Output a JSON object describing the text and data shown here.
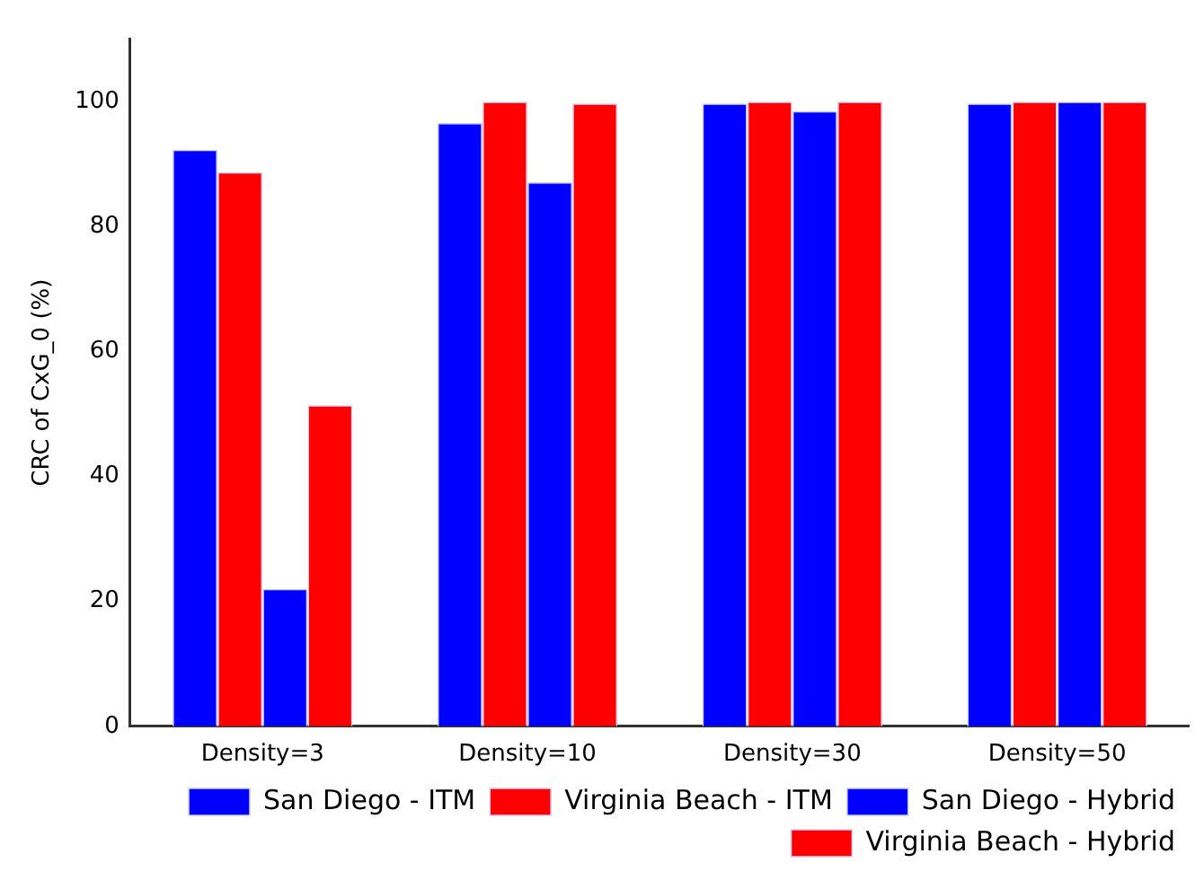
{
  "chart_data": {
    "type": "bar",
    "ylabel": "CRC of CxG_0 (%)",
    "categories": [
      "Density=3",
      "Density=10",
      "Density=30",
      "Density=50"
    ],
    "series": [
      {
        "name": "San Diego - ITM",
        "color": "#0000ff",
        "values": [
          92.3,
          96.6,
          99.7,
          99.7
        ]
      },
      {
        "name": "Virginia Beach - ITM",
        "color": "#ff0000",
        "values": [
          88.7,
          100,
          100,
          100
        ]
      },
      {
        "name": "San Diego - Hybrid",
        "color": "#0000ff",
        "values": [
          22.0,
          87.1,
          98.5,
          100
        ]
      },
      {
        "name": "Virginia Beach - Hybrid",
        "color": "#ff0000",
        "values": [
          51.4,
          99.7,
          100,
          100
        ]
      }
    ],
    "ylim": [
      0,
      110
    ],
    "yticks": [
      0,
      20,
      40,
      60,
      80,
      100
    ],
    "grid": false,
    "legend": "bottom right"
  }
}
